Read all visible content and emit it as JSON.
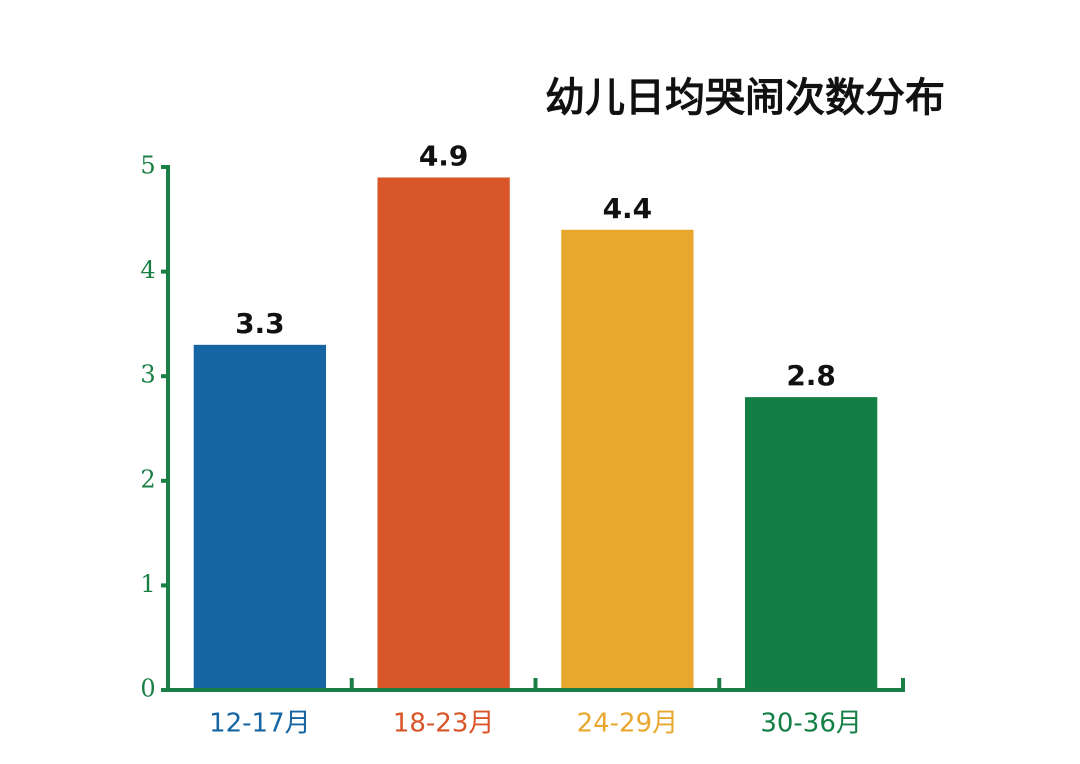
{
  "chart_data": {
    "type": "bar",
    "title": "幼儿日均哭闹次数分布",
    "categories": [
      "12-17月",
      "18-23月",
      "24-29月",
      "30-36月"
    ],
    "values": [
      3.3,
      4.9,
      4.4,
      2.8
    ],
    "colors": [
      "#1565a3",
      "#d9552a",
      "#e8a82e",
      "#137f45"
    ],
    "axis_color": "#1a7f45",
    "ylim": [
      0,
      5
    ],
    "yticks": [
      0,
      1,
      2,
      3,
      4,
      5
    ],
    "grid": false
  }
}
